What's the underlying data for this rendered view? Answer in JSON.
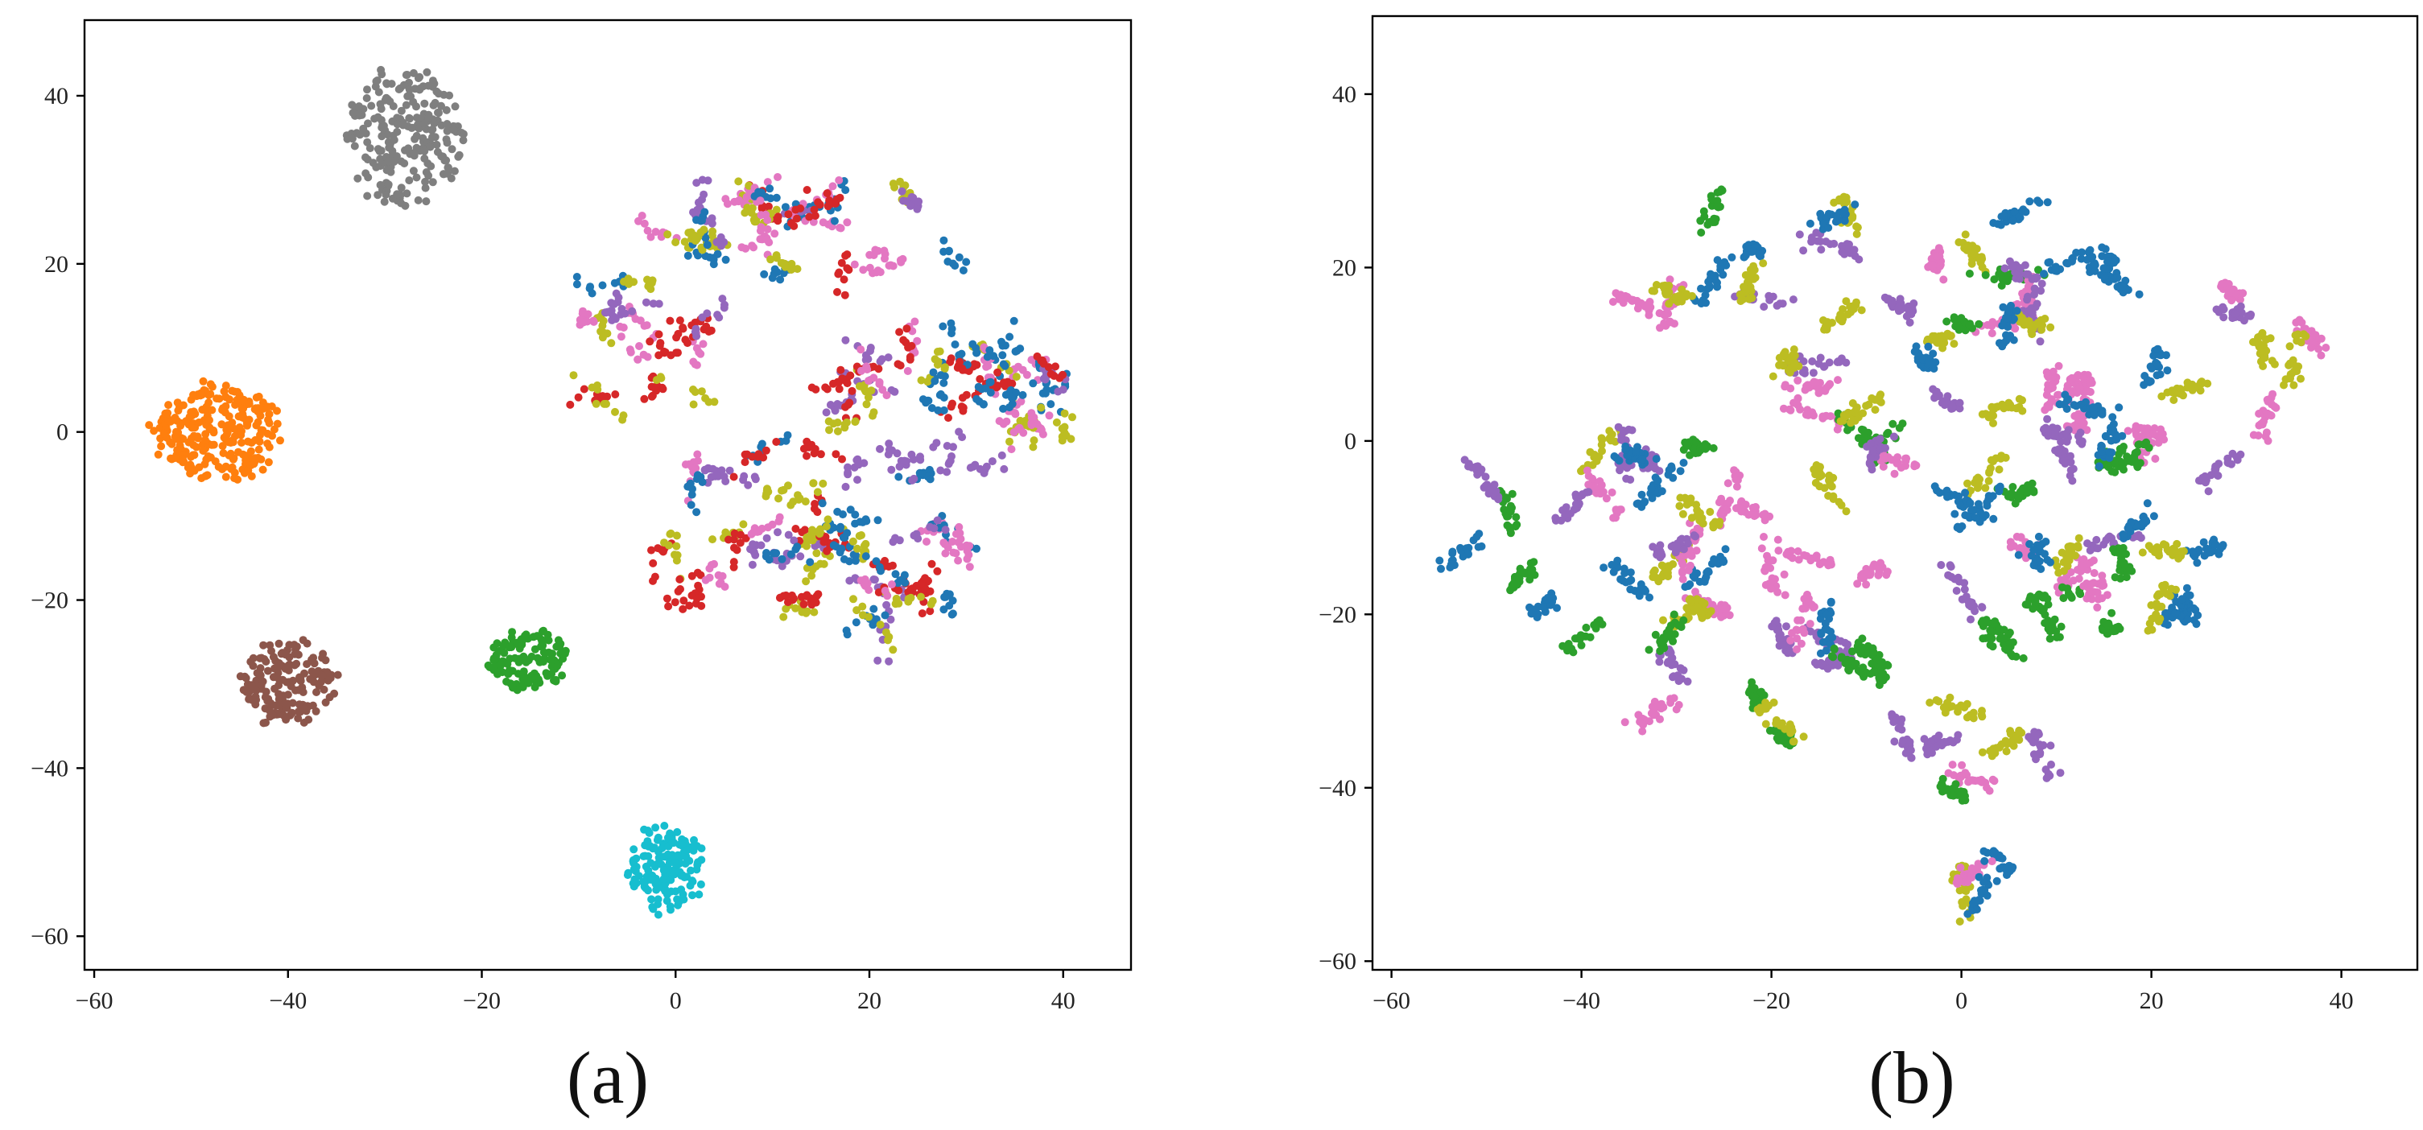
{
  "colors": {
    "blue": "#1f77b4",
    "orange": "#ff7f0e",
    "green": "#2ca02c",
    "red": "#d62728",
    "purple": "#9467bd",
    "brown": "#8c564b",
    "pink": "#e377c2",
    "gray": "#7f7f7f",
    "olive": "#bcbd22",
    "cyan": "#17becf"
  },
  "chart_data": [
    {
      "type": "scatter",
      "caption": "(a)",
      "xlim": [
        -61,
        47
      ],
      "ylim": [
        -64,
        49
      ],
      "xticks": [
        -60,
        -40,
        -20,
        0,
        20,
        40
      ],
      "yticks": [
        -60,
        -40,
        -20,
        0,
        20,
        40
      ],
      "xtick_labels": [
        "−60",
        "−40",
        "−20",
        "0",
        "20",
        "40"
      ],
      "ytick_labels": [
        "−60",
        "−40",
        "−20",
        "0",
        "20",
        "40"
      ],
      "grid": false,
      "clusters": [
        {
          "color": "gray",
          "cx": -28,
          "cy": 35,
          "rx": 6,
          "ry": 8,
          "n": 240
        },
        {
          "color": "orange",
          "cx": -47,
          "cy": 0,
          "rx": 6.5,
          "ry": 5.5,
          "n": 260
        },
        {
          "color": "brown",
          "cx": -40,
          "cy": -30,
          "rx": 4.5,
          "ry": 5,
          "n": 170
        },
        {
          "color": "green",
          "cx": -15,
          "cy": -27,
          "rx": 4,
          "ry": 3.5,
          "n": 120
        },
        {
          "color": "cyan",
          "cx": -1,
          "cy": -52,
          "rx": 3.5,
          "ry": 5,
          "n": 150
        }
      ],
      "mixed_region": {
        "colors": [
          "red",
          "purple",
          "blue",
          "olive",
          "pink"
        ],
        "n": 1400,
        "bands": [
          {
            "cx": 14,
            "cy": 24,
            "rx": 16,
            "ry": 7
          },
          {
            "cx": 26,
            "cy": 3,
            "rx": 15,
            "ry": 9
          },
          {
            "cx": 8,
            "cy": -12,
            "rx": 12,
            "ry": 10
          },
          {
            "cx": 22,
            "cy": -16,
            "rx": 8,
            "ry": 9
          },
          {
            "cx": -3,
            "cy": 10,
            "rx": 7,
            "ry": 10
          },
          {
            "cx": 36,
            "cy": 5,
            "rx": 5,
            "ry": 5
          }
        ]
      }
    },
    {
      "type": "scatter",
      "caption": "(b)",
      "xlim": [
        -62,
        48
      ],
      "ylim": [
        -61,
        49
      ],
      "xticks": [
        -60,
        -40,
        -20,
        0,
        20,
        40
      ],
      "yticks": [
        -60,
        -40,
        -20,
        0,
        20,
        40
      ],
      "xtick_labels": [
        "−60",
        "−40",
        "−20",
        "0",
        "20",
        "40"
      ],
      "ytick_labels": [
        "−60",
        "−40",
        "−20",
        "0",
        "20",
        "40"
      ],
      "grid": false,
      "mixed_region": {
        "colors": [
          "blue",
          "green",
          "purple",
          "pink",
          "olive"
        ],
        "n": 3300,
        "bands": [
          {
            "cx": -28,
            "cy": 22,
            "rx": 10,
            "ry": 8
          },
          {
            "cx": -5,
            "cy": 20,
            "rx": 22,
            "ry": 9
          },
          {
            "cx": 25,
            "cy": 8,
            "rx": 14,
            "ry": 12
          },
          {
            "cx": -10,
            "cy": 0,
            "rx": 30,
            "ry": 10
          },
          {
            "cx": -35,
            "cy": -15,
            "rx": 12,
            "ry": 10
          },
          {
            "cx": -10,
            "cy": -18,
            "rx": 20,
            "ry": 9
          },
          {
            "cx": 15,
            "cy": -15,
            "rx": 12,
            "ry": 10
          },
          {
            "cx": -25,
            "cy": -30,
            "rx": 10,
            "ry": 6
          },
          {
            "cx": 0,
            "cy": -38,
            "rx": 10,
            "ry": 8
          },
          {
            "cx": 0,
            "cy": -50,
            "rx": 6,
            "ry": 4
          },
          {
            "cx": -50,
            "cy": -12,
            "rx": 4,
            "ry": 8
          },
          {
            "cx": 35,
            "cy": 5,
            "rx": 5,
            "ry": 4
          }
        ]
      }
    }
  ]
}
